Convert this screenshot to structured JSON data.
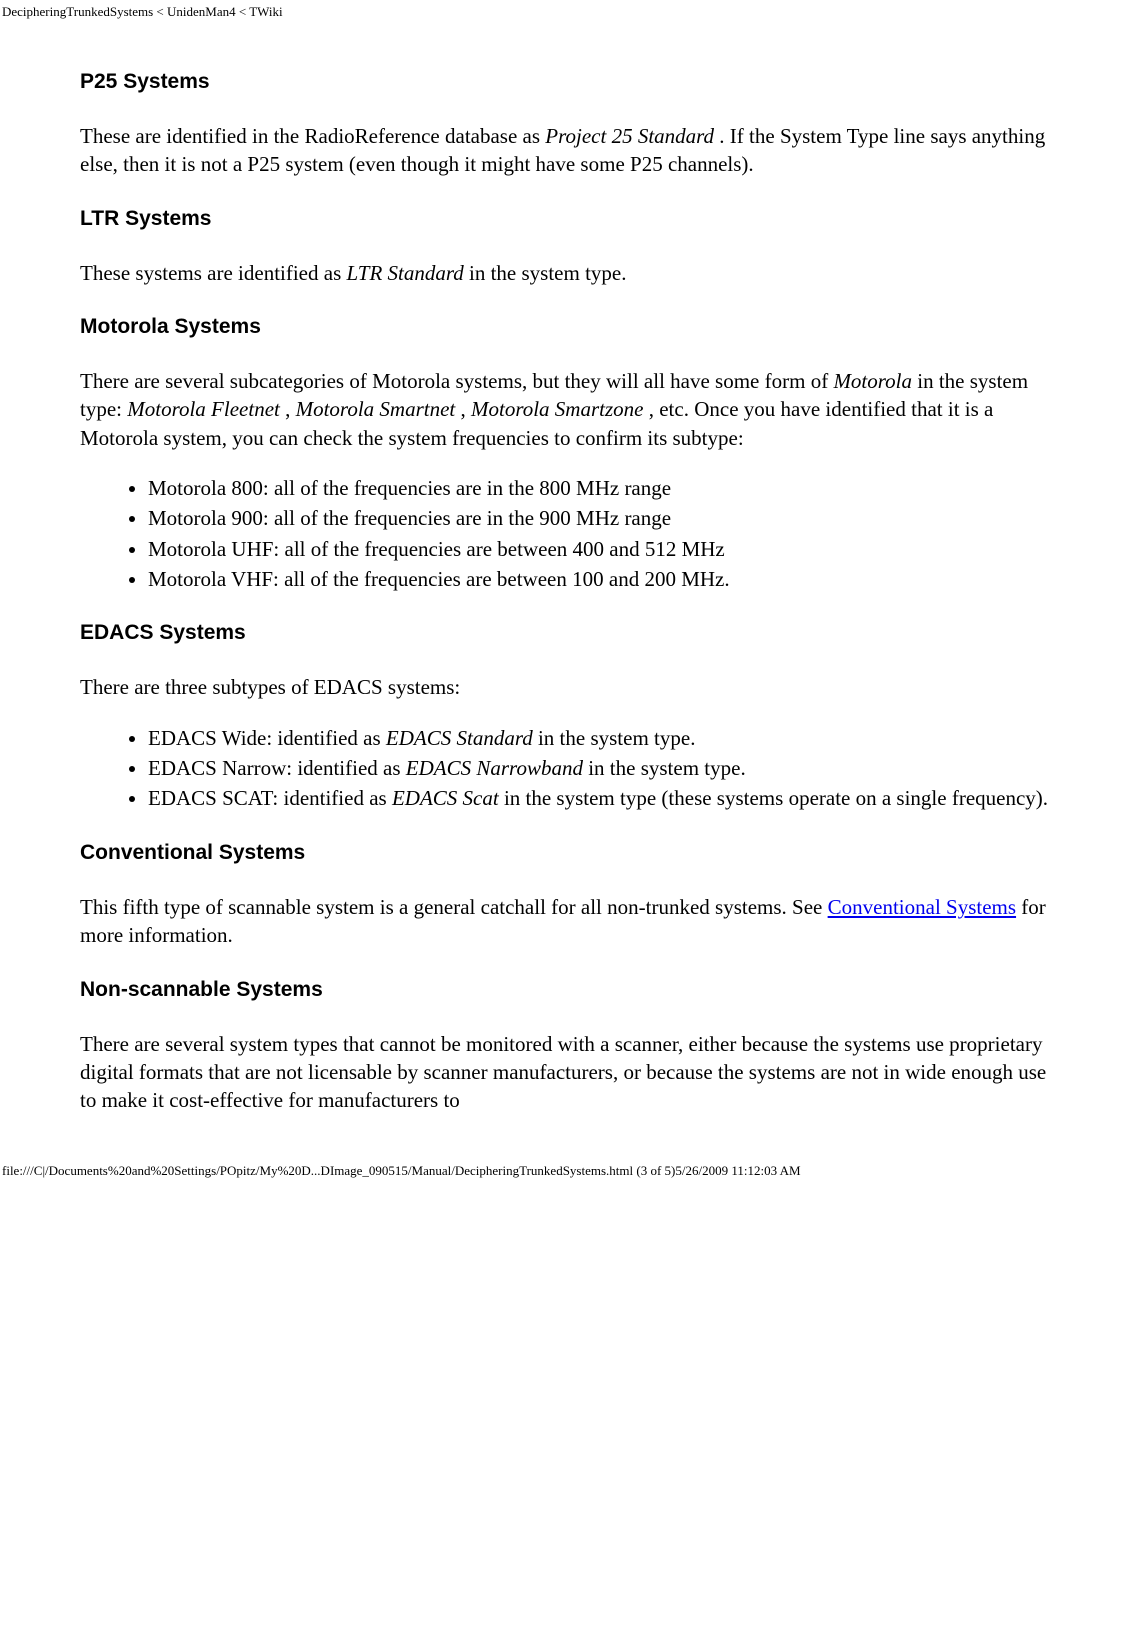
{
  "header": "DecipheringTrunkedSystems < UnidenMan4 < TWiki",
  "footer": "file:///C|/Documents%20and%20Settings/POpitz/My%20D...DImage_090515/Manual/DecipheringTrunkedSystems.html (3 of 5)5/26/2009 11:12:03 AM",
  "sections": {
    "p25": {
      "heading": "P25 Systems",
      "para_pre": "These are identified in the RadioReference database as ",
      "para_em": "Project 25 Standard",
      "para_post": " . If the System Type line says anything else, then it is not a P25 system (even though it might have some P25 channels)."
    },
    "ltr": {
      "heading": "LTR Systems",
      "para_pre": "These systems are identified as ",
      "para_em": "LTR Standard",
      "para_post": " in the system type."
    },
    "motorola": {
      "heading": "Motorola Systems",
      "para1_pre": "There are several subcategories of Motorola systems, but they will all have some form of ",
      "para1_em1": "Motorola",
      "para1_mid1": " in the system type: ",
      "para1_em2": "Motorola Fleetnet",
      "para1_mid2": " , ",
      "para1_em3": "Motorola Smartnet",
      "para1_mid3": " , ",
      "para1_em4": "Motorola Smartzone",
      "para1_post": " , etc. Once you have identified that it is a Motorola system, you can check the system frequencies to confirm its subtype:",
      "items": [
        "Motorola 800: all of the frequencies are in the 800 MHz range",
        "Motorola 900: all of the frequencies are in the 900 MHz range",
        "Motorola UHF: all of the frequencies are between 400 and 512 MHz",
        "Motorola VHF: all of the frequencies are between 100 and 200 MHz."
      ]
    },
    "edacs": {
      "heading": "EDACS Systems",
      "para": "There are three subtypes of EDACS systems:",
      "items": [
        {
          "pre": "EDACS Wide: identified as ",
          "em": "EDACS Standard",
          "post": " in the system type."
        },
        {
          "pre": "EDACS Narrow: identified as ",
          "em": "EDACS Narrowband",
          "post": " in the system type."
        },
        {
          "pre": "EDACS SCAT: identified as ",
          "em": "EDACS Scat",
          "post": " in the system type (these systems operate on a single frequency)."
        }
      ]
    },
    "conventional": {
      "heading": "Conventional Systems",
      "para_pre": "This fifth type of scannable system is a general catchall for all non-trunked systems. See ",
      "link_text": "Conventional Systems",
      "para_post": " for more information."
    },
    "nonscannable": {
      "heading": "Non-scannable Systems",
      "para": "There are several system types that cannot be monitored with a scanner, either because the systems use proprietary digital formats that are not licensable by scanner manufacturers, or because the systems are not in wide enough use to make it cost-effective for manufacturers to"
    }
  }
}
